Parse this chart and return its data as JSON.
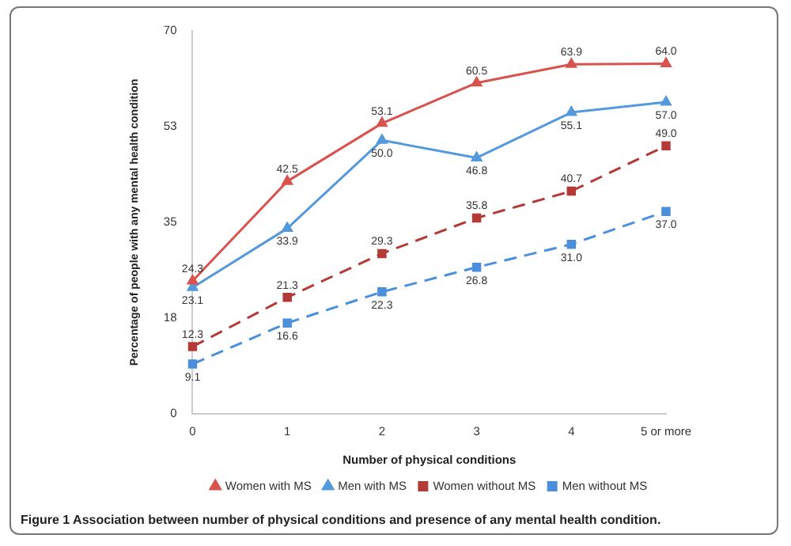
{
  "chart_data": {
    "type": "line",
    "xlabel": "Number of physical conditions",
    "ylabel": "Percentage of people with any mental health condition",
    "categories": [
      "0",
      "1",
      "2",
      "3",
      "4",
      "5 or more"
    ],
    "series": [
      {
        "name": "Women with MS",
        "color": "#d9534e",
        "marker": "triangle",
        "line_style": "solid",
        "values": [
          24.3,
          42.5,
          53.1,
          60.5,
          63.9,
          64.0
        ],
        "value_labels": [
          "24.3",
          "42.5",
          "53.1",
          "60.5",
          "63.9",
          "64.0"
        ]
      },
      {
        "name": "Men with MS",
        "color": "#5599dd",
        "marker": "triangle",
        "line_style": "solid",
        "values": [
          23.1,
          33.9,
          50.0,
          46.8,
          55.1,
          57.0
        ],
        "value_labels": [
          "23.1",
          "33.9",
          "50.0",
          "46.8",
          "55.1",
          "57.0"
        ]
      },
      {
        "name": "Women without MS",
        "color": "#b33a36",
        "marker": "square",
        "line_style": "dashed",
        "values": [
          12.3,
          21.3,
          29.3,
          35.8,
          40.7,
          49.0
        ],
        "value_labels": [
          "12.3",
          "21.3",
          "29.3",
          "35.8",
          "40.7",
          "49.0"
        ]
      },
      {
        "name": "Men without MS",
        "color": "#4a8fdb",
        "marker": "square",
        "line_style": "dashed",
        "values": [
          9.1,
          16.6,
          22.3,
          26.8,
          31.0,
          37.0
        ],
        "value_labels": [
          "9.1",
          "16.6",
          "22.3",
          "26.8",
          "31.0",
          "37.0"
        ]
      }
    ],
    "ylim": [
      0,
      70
    ],
    "yticks": [
      0,
      {
        "value": 17.5,
        "label": "18"
      },
      35,
      {
        "value": 52.5,
        "label": "53"
      },
      70
    ],
    "grid": false,
    "legend": "bottom",
    "annotations": [
      "Figure 1 Association between number of physical conditions and presence of any mental health condition."
    ]
  }
}
